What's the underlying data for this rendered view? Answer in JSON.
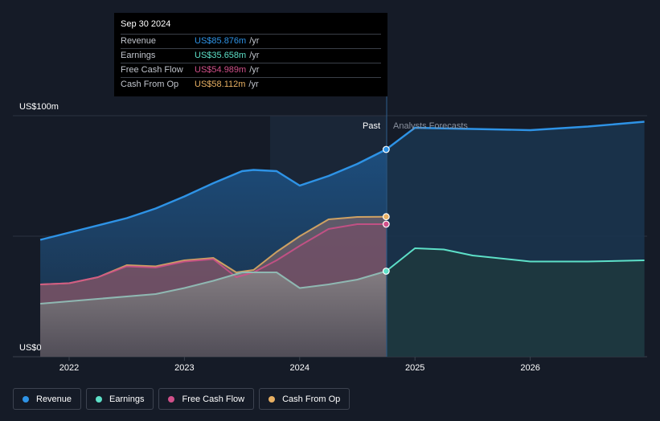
{
  "chart_data": {
    "type": "area",
    "y_top_label": "US$100m",
    "y_bottom_label": "US$0",
    "ylim": [
      0,
      100
    ],
    "x_ticks": [
      "2022",
      "2023",
      "2024",
      "2025",
      "2026"
    ],
    "period_labels": {
      "past": "Past",
      "forecast": "Analysts Forecasts"
    },
    "series": [
      {
        "name": "Revenue",
        "color": "#2e93e6",
        "past": [
          [
            2021.75,
            48.5
          ],
          [
            2022.0,
            51.5
          ],
          [
            2022.5,
            57.5
          ],
          [
            2022.75,
            61.5
          ],
          [
            2023.0,
            66.5
          ],
          [
            2023.25,
            72
          ],
          [
            2023.5,
            77
          ],
          [
            2023.6,
            77.5
          ],
          [
            2023.8,
            77
          ],
          [
            2024.0,
            71
          ],
          [
            2024.25,
            75
          ],
          [
            2024.5,
            80
          ],
          [
            2024.75,
            86
          ]
        ],
        "forecast": [
          [
            2024.75,
            86
          ],
          [
            2025.0,
            95
          ],
          [
            2025.5,
            94.5
          ],
          [
            2026.0,
            94
          ],
          [
            2026.5,
            95.5
          ],
          [
            2026.99,
            97.5
          ]
        ]
      },
      {
        "name": "Earnings",
        "color": "#5de0c8",
        "past": [
          [
            2021.75,
            22
          ],
          [
            2022.25,
            24
          ],
          [
            2022.75,
            26
          ],
          [
            2023.0,
            28.5
          ],
          [
            2023.25,
            31.5
          ],
          [
            2023.5,
            35
          ],
          [
            2023.8,
            35
          ],
          [
            2024.0,
            28.5
          ],
          [
            2024.25,
            30
          ],
          [
            2024.5,
            32
          ],
          [
            2024.75,
            35.5
          ]
        ],
        "forecast": [
          [
            2024.75,
            35.5
          ],
          [
            2025.0,
            45
          ],
          [
            2025.25,
            44.5
          ],
          [
            2025.5,
            42
          ],
          [
            2026.0,
            39.5
          ],
          [
            2026.5,
            39.5
          ],
          [
            2026.99,
            40
          ]
        ]
      },
      {
        "name": "Free Cash Flow",
        "color": "#d1508a",
        "past": [
          [
            2021.75,
            30
          ],
          [
            2022.0,
            30.5
          ],
          [
            2022.25,
            33
          ],
          [
            2022.5,
            37.5
          ],
          [
            2022.75,
            37
          ],
          [
            2023.0,
            39.5
          ],
          [
            2023.25,
            40.5
          ],
          [
            2023.45,
            33
          ],
          [
            2023.6,
            35
          ],
          [
            2023.8,
            40
          ],
          [
            2024.0,
            46
          ],
          [
            2024.25,
            53
          ],
          [
            2024.5,
            55
          ],
          [
            2024.75,
            55
          ]
        ],
        "forecast": []
      },
      {
        "name": "Cash From Op",
        "color": "#e8b063",
        "past": [
          [
            2021.75,
            30
          ],
          [
            2022.0,
            30.5
          ],
          [
            2022.25,
            33
          ],
          [
            2022.5,
            38
          ],
          [
            2022.75,
            37.5
          ],
          [
            2023.0,
            40
          ],
          [
            2023.25,
            41
          ],
          [
            2023.45,
            35
          ],
          [
            2023.6,
            36
          ],
          [
            2023.8,
            43.5
          ],
          [
            2024.0,
            50
          ],
          [
            2024.25,
            57
          ],
          [
            2024.5,
            58
          ],
          [
            2024.75,
            58.1
          ]
        ],
        "forecast": []
      }
    ],
    "highlight_x": 2024.75
  },
  "tooltip": {
    "date": "Sep 30 2024",
    "rows": [
      {
        "name": "Revenue",
        "value": "US$85.876m",
        "unit": "/yr",
        "color": "#2e93e6"
      },
      {
        "name": "Earnings",
        "value": "US$35.658m",
        "unit": "/yr",
        "color": "#5de0c8"
      },
      {
        "name": "Free Cash Flow",
        "value": "US$54.989m",
        "unit": "/yr",
        "color": "#d1508a"
      },
      {
        "name": "Cash From Op",
        "value": "US$58.112m",
        "unit": "/yr",
        "color": "#e8b063"
      }
    ]
  },
  "legend": [
    {
      "label": "Revenue",
      "color": "#2e93e6"
    },
    {
      "label": "Earnings",
      "color": "#5de0c8"
    },
    {
      "label": "Free Cash Flow",
      "color": "#d1508a"
    },
    {
      "label": "Cash From Op",
      "color": "#e8b063"
    }
  ]
}
